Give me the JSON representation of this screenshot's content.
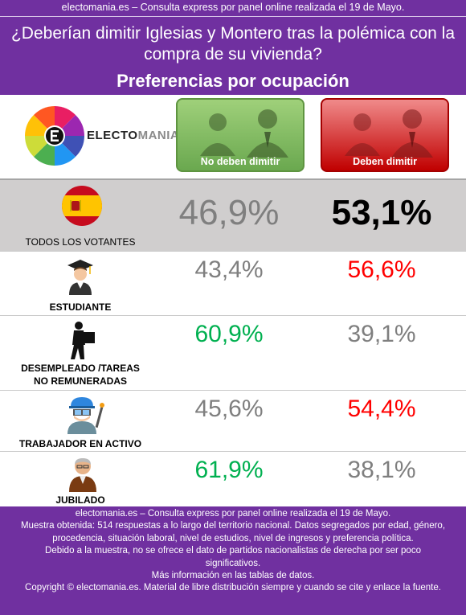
{
  "header": {
    "source_line": "electomania.es – Consulta express por panel online realizada el 19 de Mayo.",
    "question": "¿Deberían dimitir Iglesias y Montero tras la polémica con la compra de su vivienda?",
    "subtitle": "Preferencias por ocupación"
  },
  "logo": {
    "text_dark": "ELECTO",
    "text_grey": "MANIA"
  },
  "options": [
    {
      "label": "No deben dimitir",
      "color": "#6aa84f"
    },
    {
      "label": "Deben dimitir",
      "color": "#c00000"
    }
  ],
  "colors": {
    "green": "#00b050",
    "red": "#ff0000",
    "grey": "#7f7f7f",
    "black": "#000000",
    "purple": "#7030a0"
  },
  "chart_data": {
    "type": "table",
    "columns": [
      "No deben dimitir",
      "Deben dimitir"
    ],
    "rows": [
      {
        "label": "TODOS LOS VOTANTES",
        "label_lines": [
          "TODOS LOS VOTANTES"
        ],
        "icon": "spain-flag-icon",
        "values": [
          46.9,
          53.1
        ],
        "display": [
          "46,9%",
          "53,1%"
        ],
        "colors": [
          "#7f7f7f",
          "#000000"
        ]
      },
      {
        "label": "ESTUDIANTE",
        "label_lines": [
          "ESTUDIANTE"
        ],
        "icon": "graduate-icon",
        "values": [
          43.4,
          56.6
        ],
        "display": [
          "43,4%",
          "56,6%"
        ],
        "colors": [
          "#7f7f7f",
          "#ff0000"
        ]
      },
      {
        "label": "DESEMPLEADO /TAREAS NO REMUNERADAS",
        "label_lines": [
          "DESEMPLEADO /TAREAS",
          "NO REMUNERADAS"
        ],
        "icon": "worker-carrying-box-icon",
        "values": [
          60.9,
          39.1
        ],
        "display": [
          "60,9%",
          "39,1%"
        ],
        "colors": [
          "#00b050",
          "#7f7f7f"
        ]
      },
      {
        "label": "TRABAJADOR EN ACTIVO",
        "label_lines": [
          "TRABAJADOR EN ACTIVO"
        ],
        "icon": "welder-icon",
        "values": [
          45.6,
          54.4
        ],
        "display": [
          "45,6%",
          "54,4%"
        ],
        "colors": [
          "#7f7f7f",
          "#ff0000"
        ]
      },
      {
        "label": "JUBILADO",
        "label_lines": [
          "JUBILADO"
        ],
        "icon": "retiree-icon",
        "values": [
          61.9,
          38.1
        ],
        "display": [
          "61,9%",
          "38,1%"
        ],
        "colors": [
          "#00b050",
          "#7f7f7f"
        ]
      }
    ]
  },
  "footer": {
    "lines": [
      "electomania.es – Consulta express por panel online realizada el 19 de Mayo.",
      "Muestra obtenida: 514 respuestas a lo largo del territorio nacional. Datos segregados por edad, género, procedencia, situación laboral, nivel de estudios, nivel de ingresos y preferencia política.",
      "Debido a la muestra, no se ofrece el dato de partidos nacionalistas de derecha por ser poco significativos.",
      "Más información en las tablas de datos.",
      "Copyright © electomania.es. Material de libre distribución siempre y cuando se cite y enlace la fuente."
    ]
  }
}
